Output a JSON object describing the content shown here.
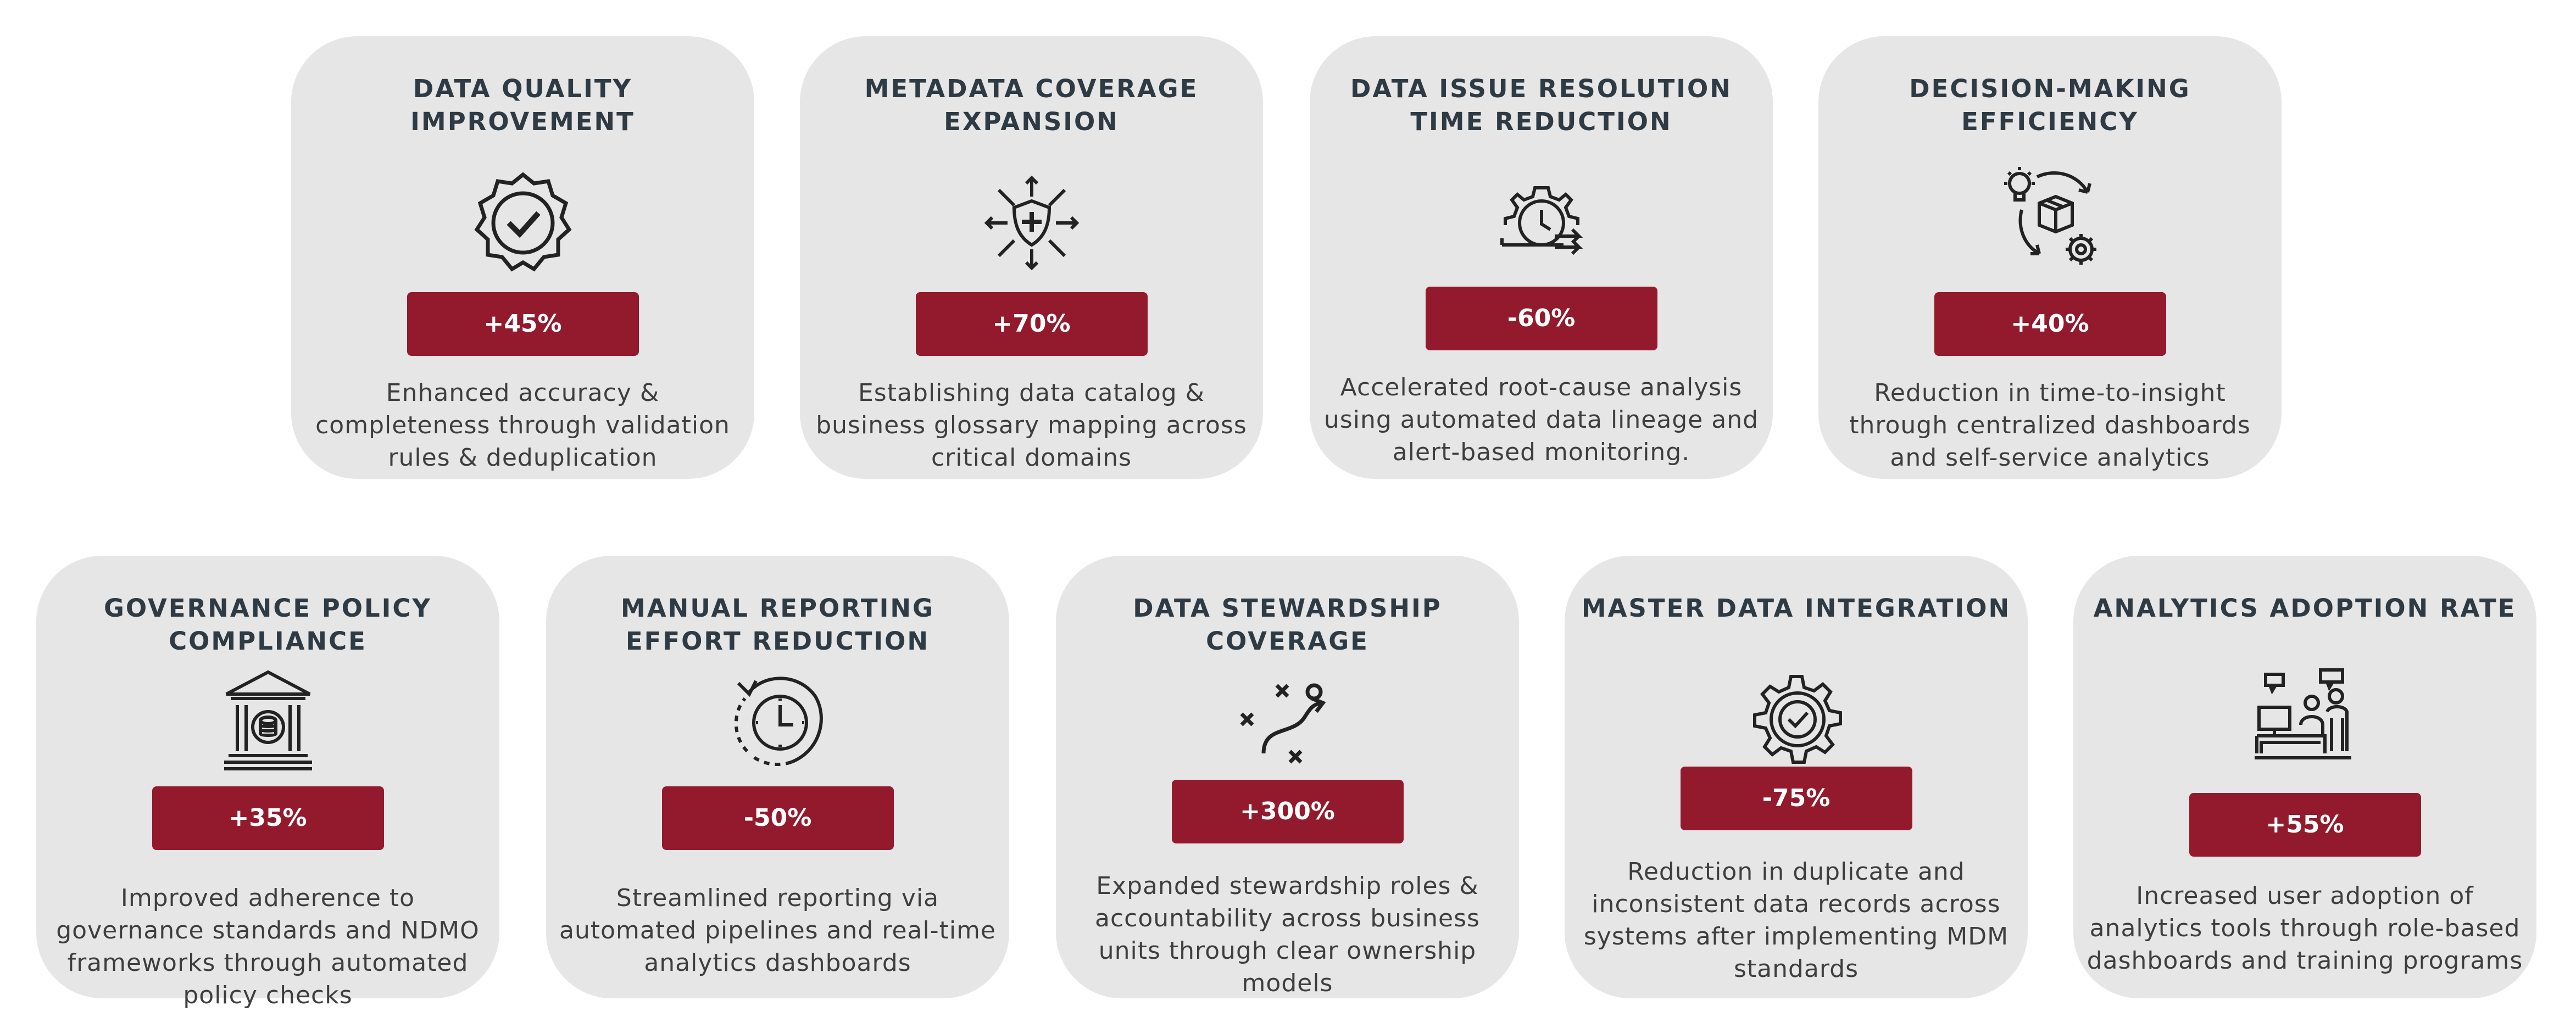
{
  "cards": [
    {
      "title": "DATA QUALITY IMPROVEMENT",
      "icon": "badge-check-icon",
      "value": "+45%",
      "description": "Enhanced accuracy & completeness through validation rules & deduplication"
    },
    {
      "title": "METADATA COVERAGE EXPANSION",
      "icon": "shield-network-icon",
      "value": "+70%",
      "description": "Establishing data catalog & business glossary mapping across critical domains"
    },
    {
      "title": "DATA ISSUE RESOLUTION TIME REDUCTION",
      "icon": "gear-clock-icon",
      "value": "-60%",
      "description": "Accelerated root-cause analysis using automated data lineage and alert-based monitoring."
    },
    {
      "title": "DECISION-MAKING EFFICIENCY",
      "icon": "idea-cycle-icon",
      "value": "+40%",
      "description": "Reduction in time-to-insight through centralized dashboards and self-service analytics"
    },
    {
      "title": "GOVERNANCE POLICY COMPLIANCE",
      "icon": "institution-icon",
      "value": "+35%",
      "description": "Improved adherence to governance standards and NDMO frameworks through automated policy checks"
    },
    {
      "title": "MANUAL REPORTING EFFORT REDUCTION",
      "icon": "clock-refresh-icon",
      "value": "-50%",
      "description": "Streamlined reporting via automated pipelines and real-time analytics dashboards"
    },
    {
      "title": "DATA STEWARDSHIP COVERAGE",
      "icon": "strategy-icon",
      "value": "+300%",
      "description": "Expanded stewardship roles & accountability across business units through clear ownership models"
    },
    {
      "title": "MASTER DATA INTEGRATION",
      "icon": "gear-check-icon",
      "value": "-75%",
      "description": "Reduction in duplicate and inconsistent data records across systems after implementing MDM standards"
    },
    {
      "title": "ANALYTICS ADOPTION RATE",
      "icon": "user-workstation-icon",
      "value": "+55%",
      "description": "Increased user adoption of analytics tools through role-based dashboards and training programs"
    }
  ],
  "colors": {
    "card": "#e6e6e6",
    "badge": "#931a2d",
    "title": "#2e3a44"
  }
}
